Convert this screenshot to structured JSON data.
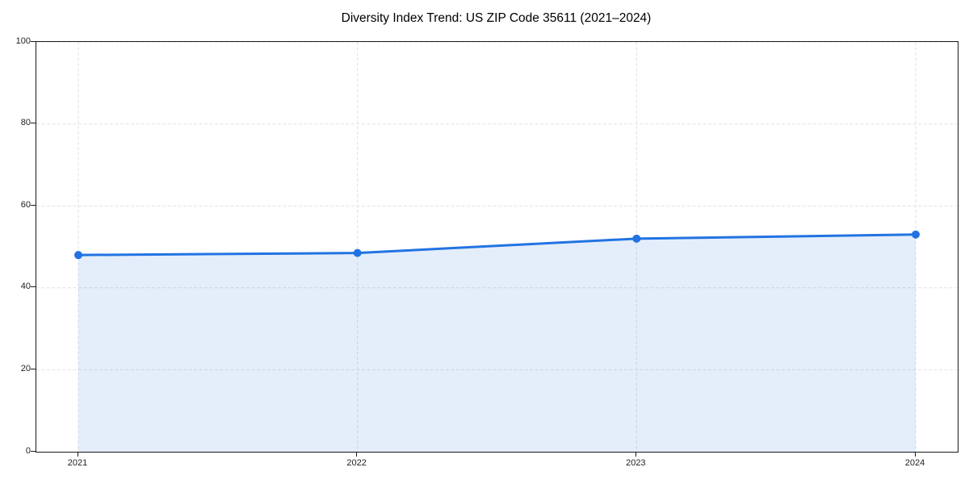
{
  "chart_data": {
    "type": "area",
    "title": "Diversity Index Trend: US ZIP Code 35611 (2021–2024)",
    "categories": [
      "2021",
      "2022",
      "2023",
      "2024"
    ],
    "series": [
      {
        "name": "Diversity Index",
        "values": [
          48,
          48.5,
          52,
          53
        ]
      }
    ],
    "xlabel": "",
    "ylabel": "",
    "ylim": [
      0,
      100
    ],
    "yticks": [
      0,
      20,
      40,
      60,
      80,
      100
    ],
    "grid": {
      "visible": true,
      "style": "dashed",
      "axes": "both"
    },
    "legend": {
      "visible": false
    },
    "colors": {
      "line": "#2273e2",
      "marker": "#2273e2",
      "fill_rgb": "34,115,226",
      "fill_opacity": 0.12,
      "grid": "#e2e2e2",
      "spine": "#1a1a1a",
      "tick_text": "#1f1f1f",
      "title_text": "#000000",
      "background": "#ffffff"
    }
  }
}
